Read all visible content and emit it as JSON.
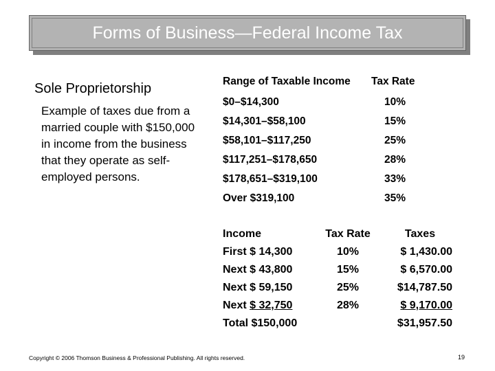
{
  "title": "Forms of Business—Federal Income Tax",
  "left": {
    "heading": "Sole Proprietorship",
    "description": "Example of taxes due from a married couple with $150,000 in income from the business that they operate as self-employed persons."
  },
  "rate_table": {
    "header_range": "Range of Taxable Income",
    "header_rate": "Tax Rate",
    "rows": [
      {
        "range": "$0–$14,300",
        "rate": "10%"
      },
      {
        "range": "$14,301–$58,100",
        "rate": "15%"
      },
      {
        "range": "$58,101–$117,250",
        "rate": "25%"
      },
      {
        "range": "$117,251–$178,650",
        "rate": "28%"
      },
      {
        "range": "$178,651–$319,100",
        "rate": "33%"
      },
      {
        "range": "Over $319,100",
        "rate": "35%"
      }
    ]
  },
  "calc": {
    "header": {
      "income": "Income",
      "rate": "Tax Rate",
      "taxes": "Taxes"
    },
    "rows": [
      {
        "label": "First $ ",
        "amount": "14,300",
        "rate": "10%",
        "tax_prefix": "$ ",
        "tax": "1,430.00"
      },
      {
        "label": "Next $ ",
        "amount": "43,800",
        "rate": "15%",
        "tax_prefix": "$ ",
        "tax": "6,570.00"
      },
      {
        "label": "Next $ ",
        "amount": "59,150",
        "rate": "25%",
        "tax_prefix": "$",
        "tax": "14,787.50"
      },
      {
        "label": "Next ",
        "amount": "$ 32,750",
        "rate": "28%",
        "tax_prefix": "",
        "tax": "$ 9,170.00"
      }
    ],
    "total_label": "Total $150,000",
    "total_tax": "$31,957.50"
  },
  "footer": "Copyright © 2006 Thomson Business & Professional Publishing. All rights reserved.",
  "page_number": "19"
}
